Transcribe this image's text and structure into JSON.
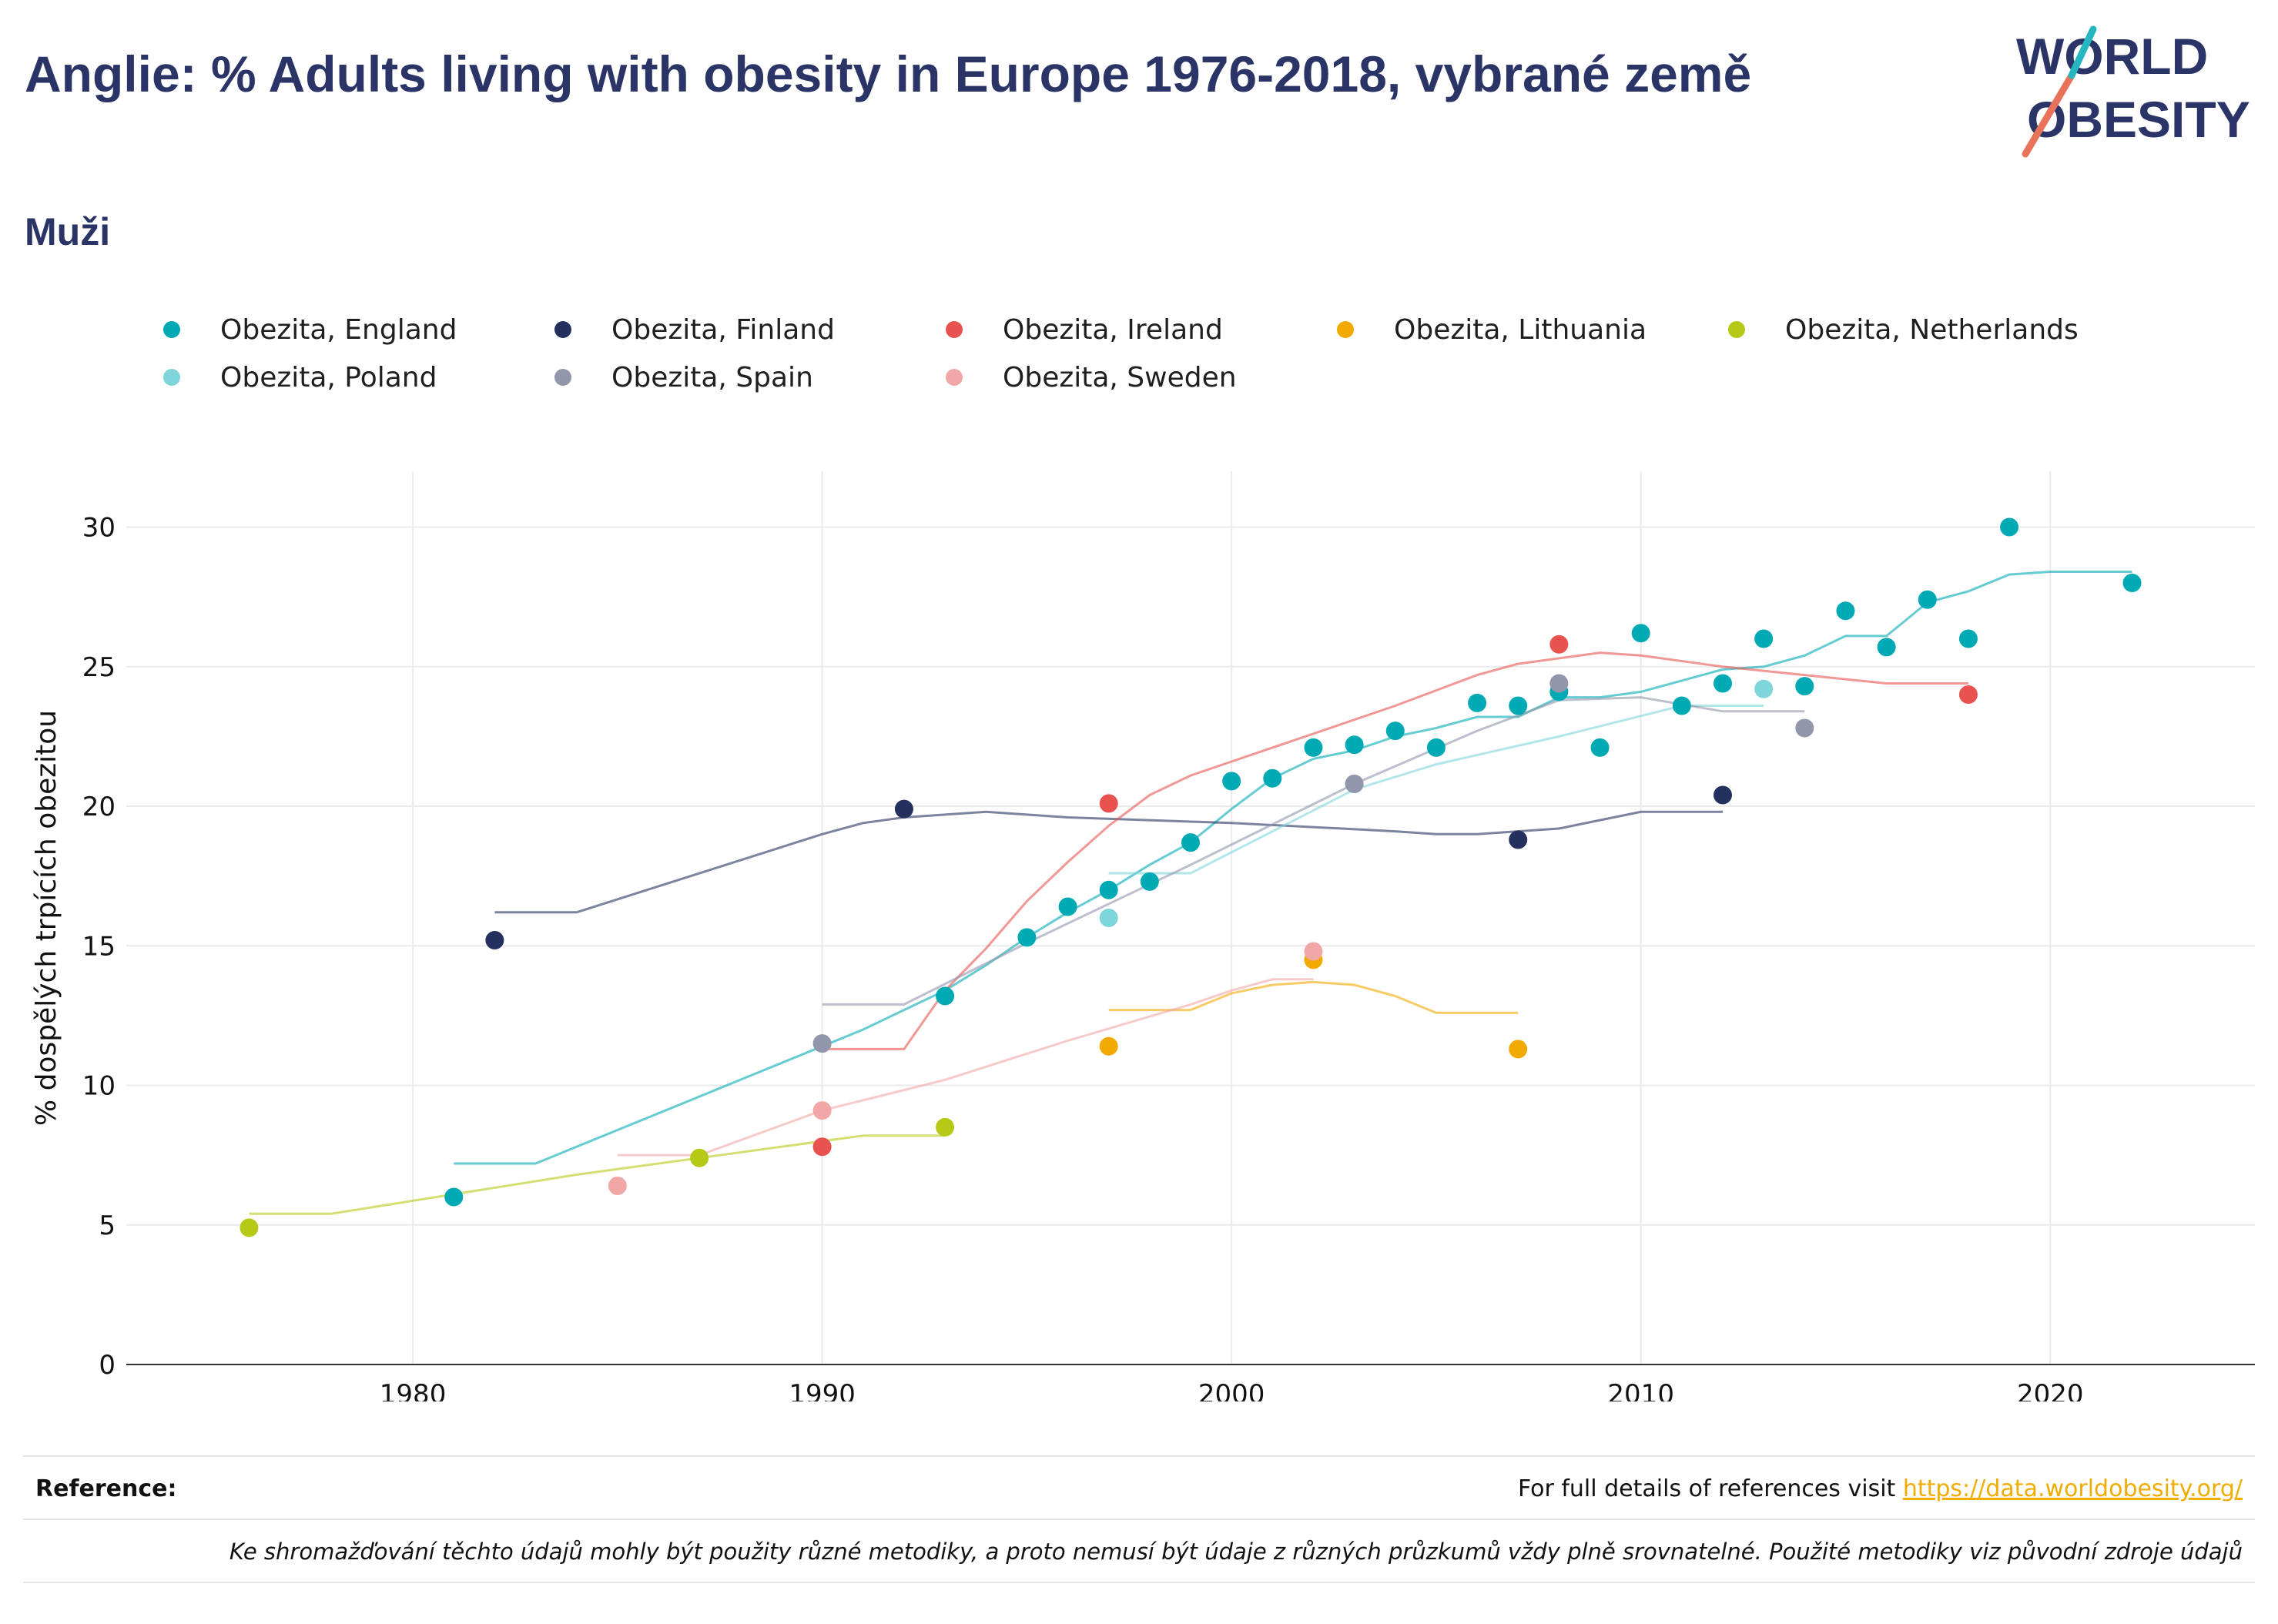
{
  "header": {
    "title": "Anglie: % Adults living with obesity in Europe 1976-2018, vybrané země",
    "subtitle": "Muži"
  },
  "logo": {
    "line1": "WORLD",
    "line2": "OBESITY",
    "accent": "#e8735a",
    "accent2": "#26b6c0",
    "text_color": "#2b3467"
  },
  "legend": [
    {
      "label": "Obezita, England",
      "color": "#00aab4"
    },
    {
      "label": "Obezita, Finland",
      "color": "#24305e"
    },
    {
      "label": "Obezita, Ireland",
      "color": "#e8534f"
    },
    {
      "label": "Obezita, Lithuania",
      "color": "#f2a900"
    },
    {
      "label": "Obezita, Netherlands",
      "color": "#b6c916"
    },
    {
      "label": "Obezita, Poland",
      "color": "#7fd6da"
    },
    {
      "label": "Obezita, Spain",
      "color": "#9196aa"
    },
    {
      "label": "Obezita, Sweden",
      "color": "#f2a7a7"
    }
  ],
  "chart_data": {
    "type": "scatter",
    "title": "Anglie: % Adults living with obesity in Europe 1976-2018, vybrané země",
    "subtitle": "Muži",
    "xlabel": "",
    "ylabel": "% dospělých trpících obezitou",
    "xlim": [
      1973,
      2025
    ],
    "ylim": [
      0,
      32
    ],
    "xticks": [
      1980,
      1990,
      2000,
      2010,
      2020
    ],
    "yticks": [
      0,
      5,
      10,
      15,
      20,
      25,
      30
    ],
    "grid": true,
    "legend_position": "top",
    "series": [
      {
        "name": "Obezita, England",
        "color": "#00aab4",
        "points": [
          [
            1981,
            6.0
          ],
          [
            1993,
            13.2
          ],
          [
            1995,
            15.3
          ],
          [
            1996,
            16.4
          ],
          [
            1997,
            17.0
          ],
          [
            1998,
            17.3
          ],
          [
            1999,
            18.7
          ],
          [
            2000,
            20.9
          ],
          [
            2001,
            21.0
          ],
          [
            2002,
            22.1
          ],
          [
            2003,
            22.2
          ],
          [
            2004,
            22.7
          ],
          [
            2005,
            22.1
          ],
          [
            2006,
            23.7
          ],
          [
            2007,
            23.6
          ],
          [
            2008,
            24.1
          ],
          [
            2009,
            22.1
          ],
          [
            2010,
            26.2
          ],
          [
            2011,
            23.6
          ],
          [
            2012,
            24.4
          ],
          [
            2013,
            26.0
          ],
          [
            2014,
            24.3
          ],
          [
            2015,
            27.0
          ],
          [
            2016,
            25.7
          ],
          [
            2017,
            27.4
          ],
          [
            2018,
            26.0
          ],
          [
            2019,
            30.0
          ],
          [
            2022,
            28.0
          ]
        ],
        "trend": [
          [
            1981,
            7.2
          ],
          [
            1983,
            7.2
          ],
          [
            1990,
            11.4
          ],
          [
            1991,
            12.0
          ],
          [
            1992,
            12.7
          ],
          [
            1993,
            13.4
          ],
          [
            1994,
            14.3
          ],
          [
            1995,
            15.3
          ],
          [
            1996,
            16.2
          ],
          [
            1997,
            17.0
          ],
          [
            1998,
            17.9
          ],
          [
            1999,
            18.7
          ],
          [
            2000,
            19.9
          ],
          [
            2001,
            21.0
          ],
          [
            2002,
            21.7
          ],
          [
            2003,
            22.0
          ],
          [
            2004,
            22.5
          ],
          [
            2005,
            22.8
          ],
          [
            2006,
            23.2
          ],
          [
            2007,
            23.2
          ],
          [
            2008,
            23.9
          ],
          [
            2009,
            23.9
          ],
          [
            2010,
            24.1
          ],
          [
            2011,
            24.5
          ],
          [
            2012,
            24.9
          ],
          [
            2013,
            25.0
          ],
          [
            2014,
            25.4
          ],
          [
            2015,
            26.1
          ],
          [
            2016,
            26.1
          ],
          [
            2017,
            27.3
          ],
          [
            2018,
            27.7
          ],
          [
            2019,
            28.3
          ],
          [
            2020,
            28.4
          ],
          [
            2022,
            28.4
          ]
        ]
      },
      {
        "name": "Obezita, Finland",
        "color": "#24305e",
        "points": [
          [
            1982,
            15.2
          ],
          [
            1992,
            19.9
          ],
          [
            2007,
            18.8
          ],
          [
            2012,
            20.4
          ]
        ],
        "trend": [
          [
            1982,
            16.2
          ],
          [
            1984,
            16.2
          ],
          [
            1990,
            19.0
          ],
          [
            1991,
            19.4
          ],
          [
            1992,
            19.6
          ],
          [
            1993,
            19.7
          ],
          [
            1994,
            19.8
          ],
          [
            1996,
            19.6
          ],
          [
            2000,
            19.4
          ],
          [
            2004,
            19.1
          ],
          [
            2005,
            19.0
          ],
          [
            2006,
            19.0
          ],
          [
            2007,
            19.1
          ],
          [
            2008,
            19.2
          ],
          [
            2009,
            19.5
          ],
          [
            2010,
            19.8
          ],
          [
            2012,
            19.8
          ]
        ]
      },
      {
        "name": "Obezita, Ireland",
        "color": "#e8534f",
        "points": [
          [
            1990,
            7.8
          ],
          [
            1997,
            20.1
          ],
          [
            2008,
            25.8
          ],
          [
            2018,
            24.0
          ]
        ],
        "trend": [
          [
            1990,
            11.3
          ],
          [
            1992,
            11.3
          ],
          [
            1993,
            13.4
          ],
          [
            1994,
            14.9
          ],
          [
            1995,
            16.6
          ],
          [
            1996,
            18.0
          ],
          [
            1997,
            19.3
          ],
          [
            1998,
            20.4
          ],
          [
            1999,
            21.1
          ],
          [
            2000,
            21.6
          ],
          [
            2002,
            22.6
          ],
          [
            2004,
            23.6
          ],
          [
            2006,
            24.7
          ],
          [
            2007,
            25.1
          ],
          [
            2008,
            25.3
          ],
          [
            2009,
            25.5
          ],
          [
            2010,
            25.4
          ],
          [
            2012,
            25.0
          ],
          [
            2014,
            24.7
          ],
          [
            2016,
            24.4
          ],
          [
            2018,
            24.4
          ]
        ]
      },
      {
        "name": "Obezita, Lithuania",
        "color": "#f2a900",
        "points": [
          [
            1997,
            11.4
          ],
          [
            2002,
            14.5
          ],
          [
            2007,
            11.3
          ]
        ],
        "trend": [
          [
            1997,
            12.7
          ],
          [
            1999,
            12.7
          ],
          [
            2000,
            13.3
          ],
          [
            2001,
            13.6
          ],
          [
            2002,
            13.7
          ],
          [
            2003,
            13.6
          ],
          [
            2004,
            13.2
          ],
          [
            2005,
            12.6
          ],
          [
            2007,
            12.6
          ]
        ]
      },
      {
        "name": "Obezita, Netherlands",
        "color": "#b6c916",
        "points": [
          [
            1976,
            4.9
          ],
          [
            1987,
            7.4
          ],
          [
            1993,
            8.5
          ]
        ],
        "trend": [
          [
            1976,
            5.4
          ],
          [
            1978,
            5.4
          ],
          [
            1981,
            6.1
          ],
          [
            1984,
            6.8
          ],
          [
            1987,
            7.4
          ],
          [
            1990,
            8.0
          ],
          [
            1991,
            8.2
          ],
          [
            1993,
            8.2
          ]
        ]
      },
      {
        "name": "Obezita, Poland",
        "color": "#7fd6da",
        "points": [
          [
            1997,
            16.0
          ],
          [
            2003,
            20.8
          ],
          [
            2013,
            24.2
          ]
        ],
        "trend": [
          [
            1997,
            17.6
          ],
          [
            1999,
            17.6
          ],
          [
            2003,
            20.6
          ],
          [
            2005,
            21.5
          ],
          [
            2008,
            22.5
          ],
          [
            2011,
            23.6
          ],
          [
            2013,
            23.6
          ]
        ]
      },
      {
        "name": "Obezita, Spain",
        "color": "#9196aa",
        "points": [
          [
            1990,
            11.5
          ],
          [
            2003,
            20.8
          ],
          [
            2008,
            24.4
          ],
          [
            2014,
            22.8
          ]
        ],
        "trend": [
          [
            1990,
            12.9
          ],
          [
            1992,
            12.9
          ],
          [
            1995,
            15.1
          ],
          [
            1999,
            17.9
          ],
          [
            2003,
            20.8
          ],
          [
            2006,
            22.7
          ],
          [
            2008,
            23.8
          ],
          [
            2010,
            23.9
          ],
          [
            2012,
            23.4
          ],
          [
            2014,
            23.4
          ]
        ]
      },
      {
        "name": "Obezita, Sweden",
        "color": "#f2a7a7",
        "points": [
          [
            1985,
            6.4
          ],
          [
            1990,
            9.1
          ],
          [
            2002,
            14.8
          ]
        ],
        "trend": [
          [
            1985,
            7.5
          ],
          [
            1987,
            7.5
          ],
          [
            1990,
            9.1
          ],
          [
            1993,
            10.2
          ],
          [
            1996,
            11.6
          ],
          [
            1999,
            12.9
          ],
          [
            2000,
            13.4
          ],
          [
            2001,
            13.8
          ],
          [
            2002,
            13.8
          ]
        ]
      }
    ]
  },
  "footer": {
    "reference_label": "Reference:",
    "reference_text": "For full details of references visit",
    "reference_link": "https://data.worldobesity.org/",
    "note": "Ke shromažďování těchto údajů mohly být použity různé metodiky, a proto nemusí být údaje z různých průzkumů vždy plně srovnatelné. Použité metodiky viz původní zdroje údajů"
  }
}
